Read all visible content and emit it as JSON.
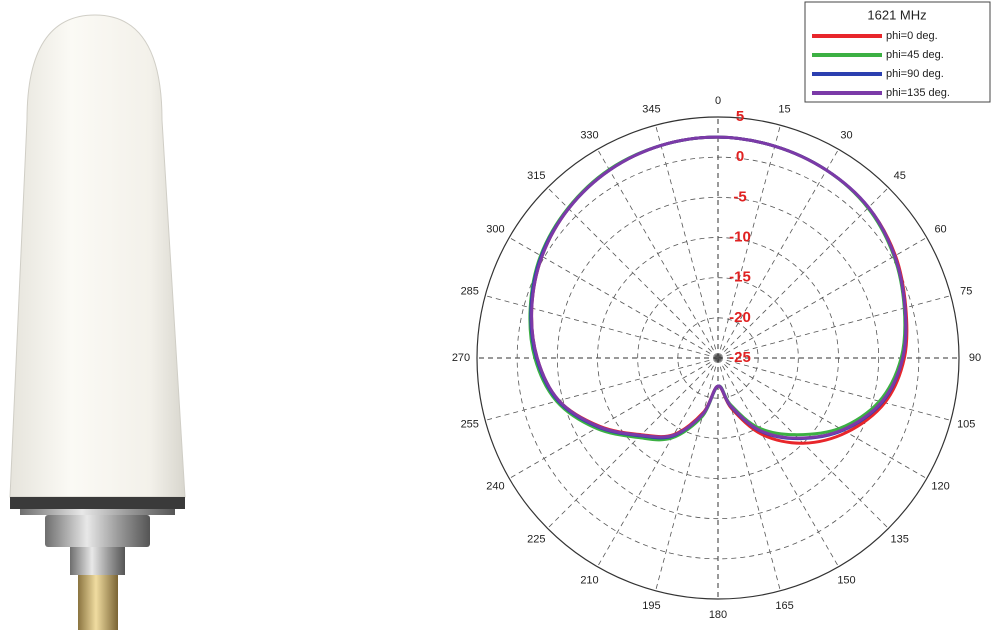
{
  "chart_data": {
    "type": "polar",
    "legend_title": "1621 MHz",
    "theta": [
      0,
      15,
      30,
      45,
      60,
      75,
      90,
      105,
      120,
      135,
      150,
      165,
      180,
      195,
      210,
      225,
      240,
      255,
      270,
      285,
      300,
      315,
      330,
      345
    ],
    "angle_ticks": [
      0,
      15,
      30,
      45,
      60,
      75,
      90,
      105,
      120,
      135,
      150,
      165,
      180,
      195,
      210,
      225,
      240,
      255,
      270,
      285,
      300,
      315,
      330,
      345
    ],
    "rlim": [
      -25,
      5
    ],
    "rticks": [
      -25,
      -20,
      -15,
      -10,
      -5,
      0,
      5
    ],
    "legend": "upper right",
    "series": [
      {
        "name": "phi=0 deg.",
        "color": "#e8262b",
        "values": [
          2.5,
          2.3,
          2,
          1.5,
          0.5,
          -0.8,
          -1.8,
          -3.5,
          -6.5,
          -10,
          -14,
          -18.5,
          -21.5,
          -18,
          -14,
          -11.5,
          -8,
          -4.5,
          -2.5,
          -1,
          0.3,
          1.3,
          2,
          2.4
        ]
      },
      {
        "name": "phi=45 deg.",
        "color": "#3cb043",
        "values": [
          2.5,
          2.3,
          2,
          1.4,
          0.3,
          -1,
          -2.2,
          -4.2,
          -7.5,
          -11.5,
          -15,
          -19,
          -21.5,
          -17.5,
          -13.5,
          -11,
          -7.5,
          -4.2,
          -2.2,
          -0.8,
          0.5,
          1.4,
          2.1,
          2.4
        ]
      },
      {
        "name": "phi=90 deg.",
        "color": "#2b3fb0",
        "values": [
          2.5,
          2.3,
          2,
          1.5,
          0.4,
          -0.9,
          -2,
          -3.8,
          -7,
          -10.8,
          -14.5,
          -18.7,
          -21.5,
          -17.8,
          -13.8,
          -11.3,
          -7.8,
          -4.4,
          -2.4,
          -0.9,
          0.4,
          1.3,
          2,
          2.4
        ]
      },
      {
        "name": "phi=135 deg.",
        "color": "#7b3aa8",
        "values": [
          2.5,
          2.3,
          2,
          1.5,
          0.4,
          -0.9,
          -2,
          -3.9,
          -7.1,
          -10.9,
          -14.6,
          -18.8,
          -21.5,
          -17.8,
          -13.9,
          -11.4,
          -7.9,
          -4.5,
          -2.5,
          -1,
          0.3,
          1.3,
          2,
          2.4
        ]
      }
    ]
  }
}
